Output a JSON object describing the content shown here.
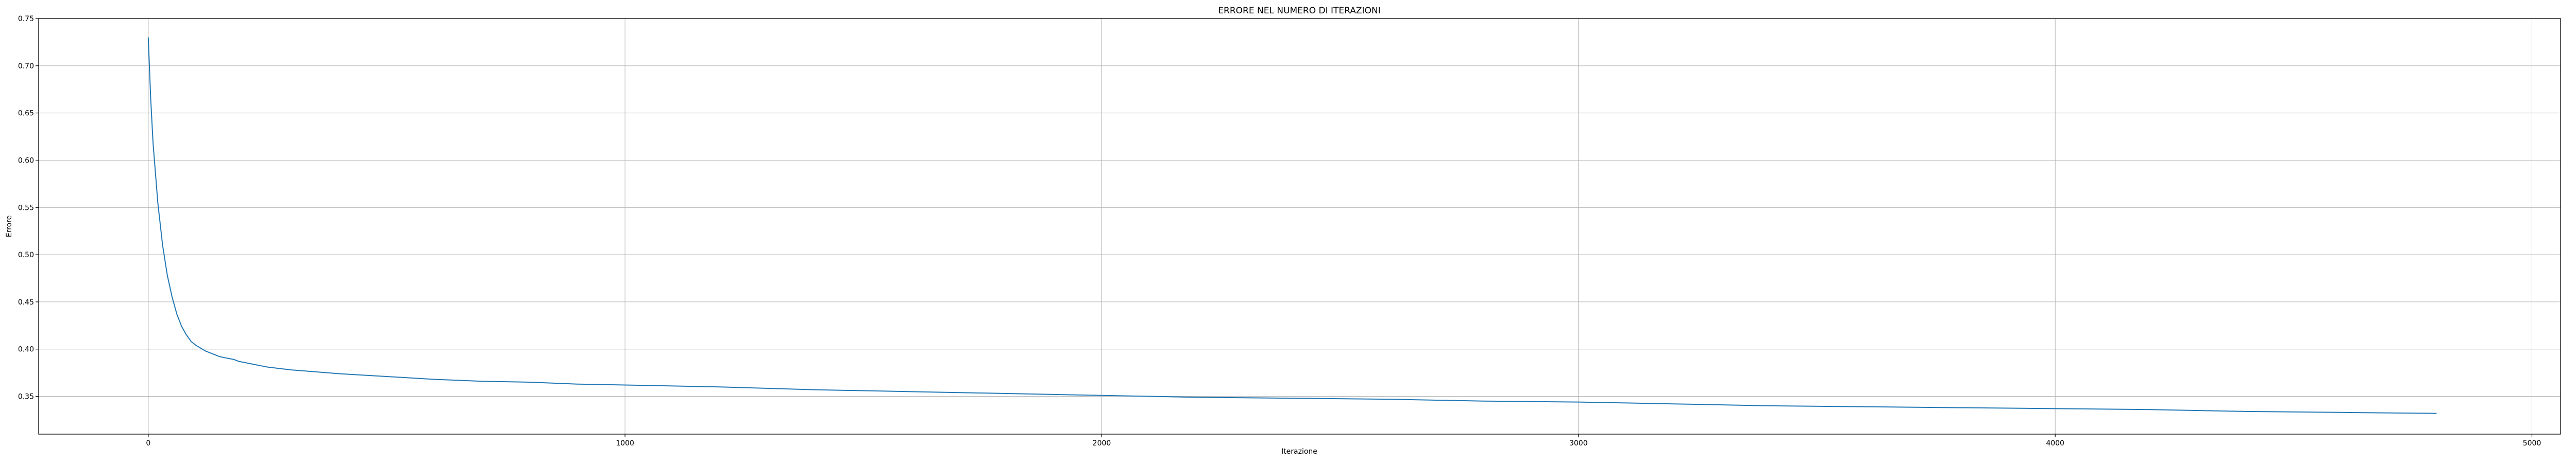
{
  "chart_data": {
    "type": "line",
    "title": "ERRORE NEL NUMERO DI ITERAZIONI",
    "xlabel": "Iterazione",
    "ylabel": "Errore",
    "xlim": [
      -230,
      5060
    ],
    "ylim": [
      0.31,
      0.75
    ],
    "x_ticks": [
      0,
      1000,
      2000,
      3000,
      4000,
      5000
    ],
    "x_tick_labels": [
      "0",
      "1000",
      "2000",
      "3000",
      "4000",
      "5000"
    ],
    "y_ticks": [
      0.35,
      0.4,
      0.45,
      0.5,
      0.55,
      0.6,
      0.65,
      0.7,
      0.75
    ],
    "y_tick_labels": [
      "0.35",
      "0.40",
      "0.45",
      "0.50",
      "0.55",
      "0.60",
      "0.65",
      "0.70",
      "0.75"
    ],
    "grid": true,
    "series": [
      {
        "color": "#1f77b4",
        "x": [
          0,
          5,
          10,
          20,
          30,
          40,
          50,
          60,
          70,
          80,
          90,
          100,
          110,
          120,
          130,
          140,
          150,
          160,
          170,
          180,
          190,
          200,
          220,
          250,
          300,
          350,
          400,
          500,
          600,
          700,
          800,
          900,
          1000,
          1200,
          1400,
          1600,
          1800,
          2000,
          2200,
          2400,
          2600,
          2800,
          3000,
          3200,
          3400,
          3600,
          3800,
          4000,
          4200,
          4400,
          4600,
          4800
        ],
        "y": [
          0.73,
          0.665,
          0.618,
          0.555,
          0.51,
          0.478,
          0.455,
          0.437,
          0.424,
          0.415,
          0.408,
          0.404,
          0.401,
          0.398,
          0.396,
          0.394,
          0.392,
          0.391,
          0.39,
          0.389,
          0.387,
          0.386,
          0.384,
          0.381,
          0.378,
          0.376,
          0.374,
          0.371,
          0.368,
          0.366,
          0.365,
          0.363,
          0.362,
          0.36,
          0.357,
          0.355,
          0.353,
          0.351,
          0.349,
          0.348,
          0.347,
          0.345,
          0.344,
          0.342,
          0.34,
          0.339,
          0.338,
          0.337,
          0.336,
          0.334,
          0.333,
          0.332
        ]
      }
    ]
  }
}
